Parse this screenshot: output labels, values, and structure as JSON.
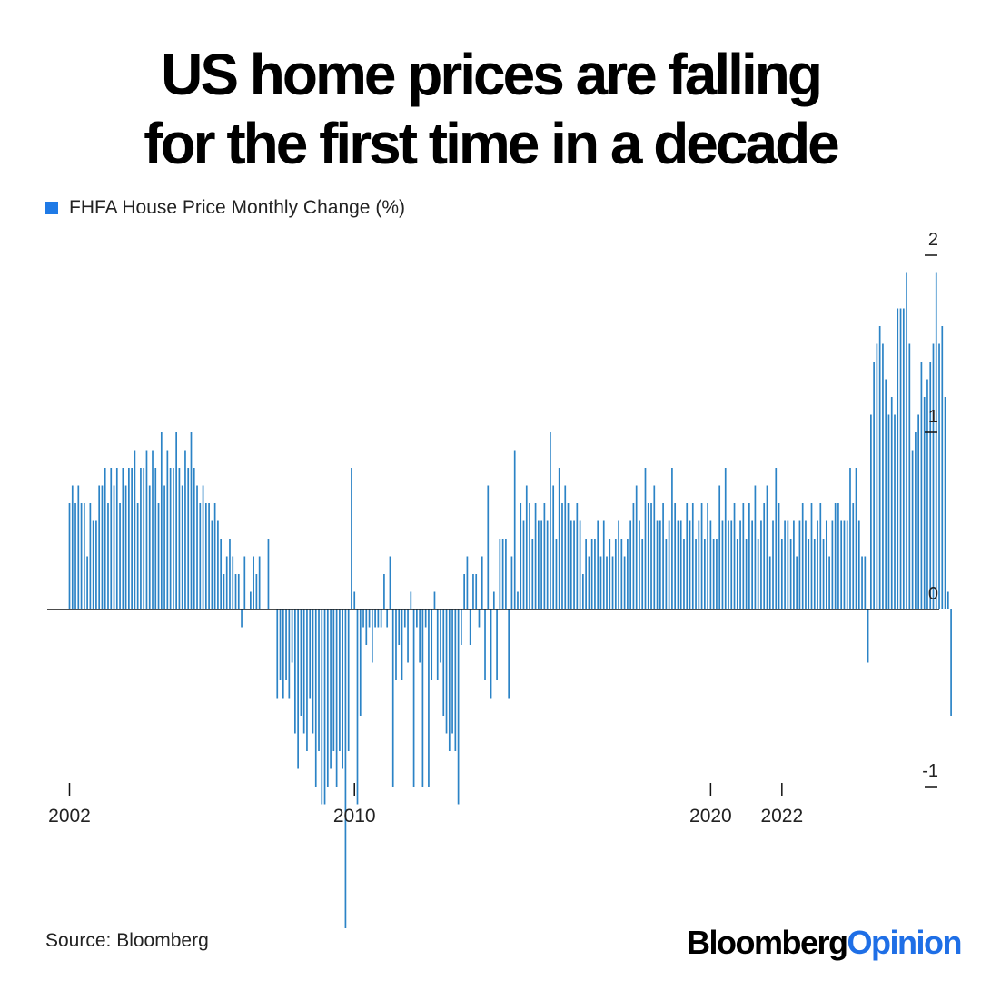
{
  "title_lines": [
    "US home prices are falling",
    "for the first time in a decade"
  ],
  "source": "Source: Bloomberg",
  "brand": {
    "part1": "Bloomberg",
    "part2": "Opinion"
  },
  "colors": {
    "bar": "#2b83c6",
    "legend": "#1f7ae6",
    "brand_accent": "#1f6fe6",
    "axis": "#111111"
  },
  "chart_data": {
    "type": "bar",
    "legend": [
      "FHFA House Price Monthly Change (%)"
    ],
    "series": [
      {
        "name": "FHFA House Price Monthly Change (%)",
        "start": "2002-01",
        "values": [
          0.6,
          0.7,
          0.6,
          0.7,
          0.6,
          0.6,
          0.3,
          0.6,
          0.5,
          0.5,
          0.7,
          0.7,
          0.8,
          0.6,
          0.8,
          0.7,
          0.8,
          0.6,
          0.8,
          0.7,
          0.8,
          0.8,
          0.9,
          0.6,
          0.8,
          0.8,
          0.9,
          0.7,
          0.9,
          0.8,
          0.6,
          1.0,
          0.7,
          0.9,
          0.8,
          0.8,
          1.0,
          0.8,
          0.7,
          0.9,
          0.8,
          1.0,
          0.8,
          0.7,
          0.6,
          0.7,
          0.6,
          0.6,
          0.5,
          0.6,
          0.5,
          0.4,
          0.2,
          0.3,
          0.4,
          0.3,
          0.2,
          0.2,
          -0.1,
          0.3,
          0.0,
          0.1,
          0.3,
          0.2,
          0.3,
          0.0,
          0.0,
          0.4,
          0.0,
          0.0,
          -0.5,
          -0.4,
          -0.5,
          -0.4,
          -0.5,
          -0.3,
          -0.7,
          -0.9,
          -0.6,
          -0.7,
          -0.8,
          -0.5,
          -0.7,
          -1.0,
          -0.8,
          -1.1,
          -1.1,
          -1.0,
          -0.9,
          -0.8,
          -1.0,
          -0.8,
          -0.9,
          -1.8,
          -0.8,
          0.8,
          0.1,
          -1.1,
          -0.6,
          -0.1,
          -0.2,
          -0.1,
          -0.3,
          -0.1,
          -0.1,
          -0.1,
          0.2,
          -0.1,
          0.3,
          -1.0,
          -0.4,
          -0.2,
          -0.4,
          -0.1,
          -0.3,
          0.1,
          -1.0,
          -0.1,
          -0.3,
          -1.0,
          -0.1,
          -1.0,
          -0.4,
          0.1,
          -0.4,
          -0.3,
          -0.6,
          -0.7,
          -0.8,
          -0.7,
          -0.8,
          -1.1,
          -0.2,
          0.2,
          0.3,
          -0.2,
          0.2,
          0.2,
          -0.1,
          0.3,
          -0.4,
          0.7,
          -0.5,
          0.1,
          -0.4,
          0.4,
          0.4,
          0.4,
          -0.5,
          0.3,
          0.9,
          0.1,
          0.6,
          0.5,
          0.7,
          0.6,
          0.4,
          0.6,
          0.5,
          0.5,
          0.6,
          0.5,
          1.0,
          0.7,
          0.4,
          0.8,
          0.6,
          0.7,
          0.6,
          0.5,
          0.5,
          0.6,
          0.5,
          0.2,
          0.4,
          0.3,
          0.4,
          0.4,
          0.5,
          0.3,
          0.5,
          0.3,
          0.4,
          0.3,
          0.4,
          0.5,
          0.4,
          0.3,
          0.4,
          0.5,
          0.6,
          0.7,
          0.5,
          0.4,
          0.8,
          0.6,
          0.6,
          0.7,
          0.5,
          0.5,
          0.6,
          0.4,
          0.5,
          0.8,
          0.6,
          0.5,
          0.5,
          0.4,
          0.6,
          0.5,
          0.6,
          0.4,
          0.5,
          0.6,
          0.4,
          0.6,
          0.5,
          0.4,
          0.4,
          0.7,
          0.5,
          0.8,
          0.5,
          0.5,
          0.6,
          0.4,
          0.5,
          0.6,
          0.4,
          0.6,
          0.5,
          0.7,
          0.4,
          0.5,
          0.6,
          0.7,
          0.3,
          0.5,
          0.8,
          0.6,
          0.4,
          0.5,
          0.5,
          0.4,
          0.5,
          0.3,
          0.5,
          0.6,
          0.5,
          0.4,
          0.6,
          0.4,
          0.5,
          0.6,
          0.4,
          0.5,
          0.3,
          0.5,
          0.6,
          0.6,
          0.5,
          0.5,
          0.5,
          0.8,
          0.6,
          0.8,
          0.5,
          0.3,
          0.3,
          -0.3,
          1.1,
          1.4,
          1.5,
          1.6,
          1.5,
          1.3,
          1.1,
          1.2,
          1.1,
          1.7,
          1.7,
          1.7,
          1.9,
          1.5,
          0.9,
          1.0,
          1.1,
          1.4,
          1.2,
          1.3,
          1.4,
          1.5,
          1.9,
          1.5,
          1.6,
          1.2,
          0.1,
          -0.6
        ]
      }
    ],
    "x_tick_labels": [
      "2002",
      "2010",
      "2020",
      "2022"
    ],
    "x_ticks": [
      "2002-01",
      "2010-01",
      "2020-01",
      "2022-01"
    ],
    "y_tick_labels": [
      "2",
      "1",
      "0",
      "-1"
    ],
    "y_ticks": [
      2,
      1,
      0,
      -1
    ],
    "ylim": [
      -1.8,
      2.0
    ],
    "y_axis_side": "right",
    "grid": false,
    "legend_position": "top-left"
  }
}
